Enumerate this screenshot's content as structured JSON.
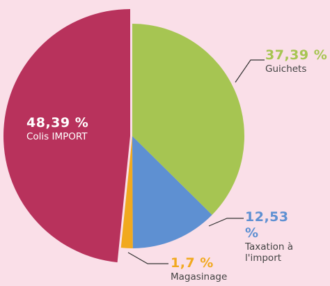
{
  "chart_data": {
    "type": "pie",
    "categories": [
      "Guichets",
      "Taxation à l'import",
      "Magasinage",
      "Colis IMPORT"
    ],
    "values": [
      37.39,
      12.53,
      1.7,
      48.39
    ],
    "value_labels": [
      "37,39 %",
      "12,53 %",
      "1,7 %",
      "48,39 %"
    ],
    "colors": [
      "#a6c552",
      "#5e90d2",
      "#f1a91f",
      "#b8325c"
    ]
  }
}
